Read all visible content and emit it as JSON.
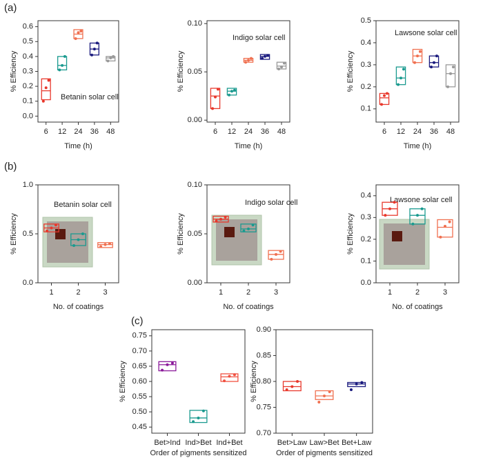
{
  "panel_labels": [
    "(a)",
    "(b)",
    "(c)"
  ],
  "chart_data": [
    {
      "type": "box",
      "title": "Betanin solar cell",
      "xlabel": "Time (h)",
      "ylabel": "% Efficiency",
      "categories": [
        "6",
        "12",
        "24",
        "36",
        "48"
      ],
      "colors": [
        "#e8382c",
        "#1a9a8f",
        "#f07050",
        "#1a1a7e",
        "#999999"
      ],
      "ylim": [
        -0.04,
        0.64
      ],
      "yticks": [
        {
          "value": 0,
          "label": "0.0"
        },
        0.1,
        0.2,
        0.3,
        0.4,
        0.5,
        0.6
      ],
      "boxes": [
        {
          "q1": 0.11,
          "median": 0.17,
          "q3": 0.25,
          "points": [
            0.1,
            0.19,
            0.24
          ]
        },
        {
          "q1": 0.31,
          "median": 0.34,
          "q3": 0.4,
          "points": [
            0.31,
            0.34,
            0.4
          ]
        },
        {
          "q1": 0.52,
          "median": 0.55,
          "q3": 0.58,
          "points": [
            0.52,
            0.56,
            0.57
          ]
        },
        {
          "q1": 0.41,
          "median": 0.45,
          "q3": 0.49,
          "points": [
            0.41,
            0.45,
            0.49
          ]
        },
        {
          "q1": 0.37,
          "median": 0.39,
          "q3": 0.4,
          "points": [
            0.37,
            0.39,
            0.4
          ]
        }
      ]
    },
    {
      "type": "box",
      "title": "Indigo solar cell",
      "xlabel": "Time (h)",
      "ylabel": "% Efficiency",
      "categories": [
        "6",
        "12",
        "24",
        "36",
        "48"
      ],
      "colors": [
        "#e8382c",
        "#1a9a8f",
        "#f07050",
        "#1a1a7e",
        "#999999"
      ],
      "ylim": [
        -0.002,
        0.103
      ],
      "yticks": [
        {
          "value": 0,
          "label": "0.00"
        },
        0.05,
        {
          "value": 0.1,
          "label": "0.10"
        }
      ],
      "boxes": [
        {
          "q1": 0.012,
          "median": 0.025,
          "q3": 0.033,
          "points": [
            0.012,
            0.024,
            0.032
          ]
        },
        {
          "q1": 0.026,
          "median": 0.03,
          "q3": 0.033,
          "points": [
            0.026,
            0.03,
            0.031
          ]
        },
        {
          "q1": 0.06,
          "median": 0.062,
          "q3": 0.064,
          "points": [
            0.06,
            0.062,
            0.064
          ]
        },
        {
          "q1": 0.063,
          "median": 0.066,
          "q3": 0.068,
          "points": [
            0.064,
            0.066,
            0.067
          ]
        },
        {
          "q1": 0.053,
          "median": 0.056,
          "q3": 0.06,
          "points": [
            0.053,
            0.055,
            0.059
          ]
        }
      ]
    },
    {
      "type": "box",
      "title": "Lawsone solar cell",
      "xlabel": "Time (h)",
      "ylabel": "% Efficiency",
      "categories": [
        "6",
        "12",
        "24",
        "36",
        "48"
      ],
      "colors": [
        "#e8382c",
        "#1a9a8f",
        "#f07050",
        "#1a1a7e",
        "#999999"
      ],
      "ylim": [
        0.04,
        0.5
      ],
      "yticks": [
        0.1,
        0.2,
        0.3,
        0.4,
        0.5
      ],
      "boxes": [
        {
          "q1": 0.12,
          "median": 0.15,
          "q3": 0.17,
          "points": [
            0.12,
            0.16,
            0.17
          ]
        },
        {
          "q1": 0.21,
          "median": 0.24,
          "q3": 0.29,
          "points": [
            0.21,
            0.24,
            0.28
          ]
        },
        {
          "q1": 0.31,
          "median": 0.34,
          "q3": 0.37,
          "points": [
            0.31,
            0.34,
            0.36
          ]
        },
        {
          "q1": 0.29,
          "median": 0.31,
          "q3": 0.34,
          "points": [
            0.29,
            0.31,
            0.34
          ]
        },
        {
          "q1": 0.2,
          "median": 0.26,
          "q3": 0.3,
          "points": [
            0.2,
            0.26,
            0.29
          ]
        }
      ]
    },
    {
      "type": "box",
      "title": "Betanin solar cell",
      "xlabel": "No. of coatings",
      "ylabel": "% Efficiency",
      "categories": [
        "1",
        "2",
        "3"
      ],
      "colors": [
        "#e8382c",
        "#1a9a8f",
        "#f07050"
      ],
      "ylim": [
        0,
        1
      ],
      "yticks": [
        {
          "value": 0,
          "label": "0.0"
        },
        0.5,
        {
          "value": 1,
          "label": "1.0"
        }
      ],
      "boxes": [
        {
          "q1": 0.52,
          "median": 0.56,
          "q3": 0.6,
          "points": [
            0.53,
            0.56,
            0.59
          ]
        },
        {
          "q1": 0.38,
          "median": 0.44,
          "q3": 0.5,
          "points": [
            0.38,
            0.44,
            0.5
          ]
        },
        {
          "q1": 0.36,
          "median": 0.39,
          "q3": 0.41,
          "points": [
            0.37,
            0.39,
            0.4
          ]
        }
      ]
    },
    {
      "type": "box",
      "title": "Indigo solar cell",
      "xlabel": "No. of coatings",
      "ylabel": "% Efficiency",
      "categories": [
        "1",
        "2",
        "3"
      ],
      "colors": [
        "#e8382c",
        "#1a9a8f",
        "#f07050"
      ],
      "ylim": [
        0,
        0.1
      ],
      "yticks": [
        {
          "value": 0,
          "label": "0.00"
        },
        0.05,
        {
          "value": 0.1,
          "label": "0.10"
        }
      ],
      "boxes": [
        {
          "q1": 0.062,
          "median": 0.065,
          "q3": 0.068,
          "points": [
            0.063,
            0.065,
            0.067
          ]
        },
        {
          "q1": 0.052,
          "median": 0.055,
          "q3": 0.06,
          "points": [
            0.053,
            0.055,
            0.059
          ]
        },
        {
          "q1": 0.024,
          "median": 0.029,
          "q3": 0.033,
          "points": [
            0.024,
            0.029,
            0.032
          ]
        }
      ]
    },
    {
      "type": "box",
      "title": "Lawsone solar cell",
      "xlabel": "No. of coatings",
      "ylabel": "% Efficiency",
      "categories": [
        "1",
        "2",
        "3"
      ],
      "colors": [
        "#e8382c",
        "#1a9a8f",
        "#f07050"
      ],
      "ylim": [
        0,
        0.45
      ],
      "yticks": [
        {
          "value": 0,
          "label": "0.0"
        },
        0.1,
        0.2,
        0.3,
        0.4
      ],
      "boxes": [
        {
          "q1": 0.31,
          "median": 0.34,
          "q3": 0.37,
          "points": [
            0.31,
            0.34,
            0.37
          ]
        },
        {
          "q1": 0.27,
          "median": 0.31,
          "q3": 0.34,
          "points": [
            0.27,
            0.31,
            0.34
          ]
        },
        {
          "q1": 0.21,
          "median": 0.255,
          "q3": 0.29,
          "points": [
            0.21,
            0.26,
            0.28
          ]
        }
      ]
    },
    {
      "type": "box",
      "xlabel": "Order of pigments sensitized",
      "ylabel": "% Efficiency",
      "categories": [
        "Bet>Ind",
        "Ind>Bet",
        "Ind+Bet"
      ],
      "colors": [
        "#8b1a9a",
        "#1a9a8f",
        "#f05040"
      ],
      "ylim": [
        0.43,
        0.77
      ],
      "yticks": [
        0.45,
        {
          "value": 0.5,
          "label": "0.50"
        },
        0.55,
        {
          "value": 0.6,
          "label": "0.60"
        },
        0.65,
        {
          "value": 0.7,
          "label": "0.70"
        },
        0.75
      ],
      "boxes": [
        {
          "q1": 0.635,
          "median": 0.655,
          "q3": 0.665,
          "points": [
            0.637,
            0.655,
            0.66
          ]
        },
        {
          "q1": 0.465,
          "median": 0.48,
          "q3": 0.505,
          "points": [
            0.468,
            0.48,
            0.503
          ]
        },
        {
          "q1": 0.6,
          "median": 0.615,
          "q3": 0.625,
          "points": [
            0.602,
            0.617,
            0.622
          ]
        }
      ]
    },
    {
      "type": "box",
      "xlabel": "Order of pigments sensitized",
      "ylabel": "% Efficiency",
      "categories": [
        "Bet>Law",
        "Law>Bet",
        "Bet+Law"
      ],
      "colors": [
        "#e8382c",
        "#f07050",
        "#1a1a7e"
      ],
      "ylim": [
        0.7,
        0.9
      ],
      "yticks": [
        {
          "value": 0.7,
          "label": "0.70"
        },
        0.75,
        {
          "value": 0.8,
          "label": "0.80"
        },
        0.85,
        {
          "value": 0.9,
          "label": "0.90"
        }
      ],
      "boxes": [
        {
          "q1": 0.782,
          "median": 0.79,
          "q3": 0.8,
          "points": [
            0.784,
            0.79,
            0.8
          ]
        },
        {
          "q1": 0.765,
          "median": 0.772,
          "q3": 0.782,
          "points": [
            0.76,
            0.772,
            0.78
          ]
        },
        {
          "q1": 0.79,
          "median": 0.795,
          "q3": 0.798,
          "points": [
            0.784,
            0.795,
            0.798
          ]
        }
      ]
    }
  ]
}
